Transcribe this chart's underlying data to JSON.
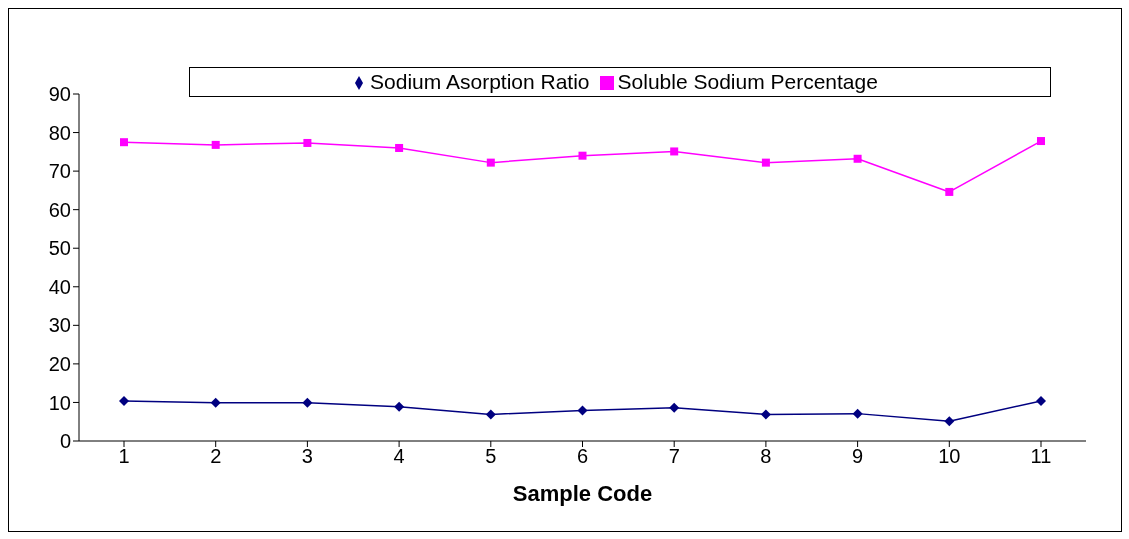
{
  "chart_data": {
    "type": "line",
    "xlabel": "Sample Code",
    "categories": [
      "1",
      "2",
      "3",
      "4",
      "5",
      "6",
      "7",
      "8",
      "9",
      "10",
      "11"
    ],
    "series": [
      {
        "name": "Sodium Asorption Ratio",
        "color": "#000080",
        "marker": "diamond",
        "values": [
          10.4,
          9.9,
          9.9,
          8.9,
          6.9,
          7.9,
          8.6,
          6.9,
          7.1,
          5.1,
          10.4
        ]
      },
      {
        "name": "Soluble Sodium Percentage",
        "color": "#ff00ff",
        "marker": "square",
        "values": [
          77.5,
          76.8,
          77.3,
          76,
          72.2,
          74,
          75.1,
          72.2,
          73.2,
          64.6,
          77.8
        ]
      }
    ],
    "ylim": [
      0,
      90
    ],
    "yticks": [
      0,
      10,
      20,
      30,
      40,
      50,
      60,
      70,
      80,
      90
    ],
    "grid": false,
    "legend": "top",
    "line_style": "solid"
  }
}
